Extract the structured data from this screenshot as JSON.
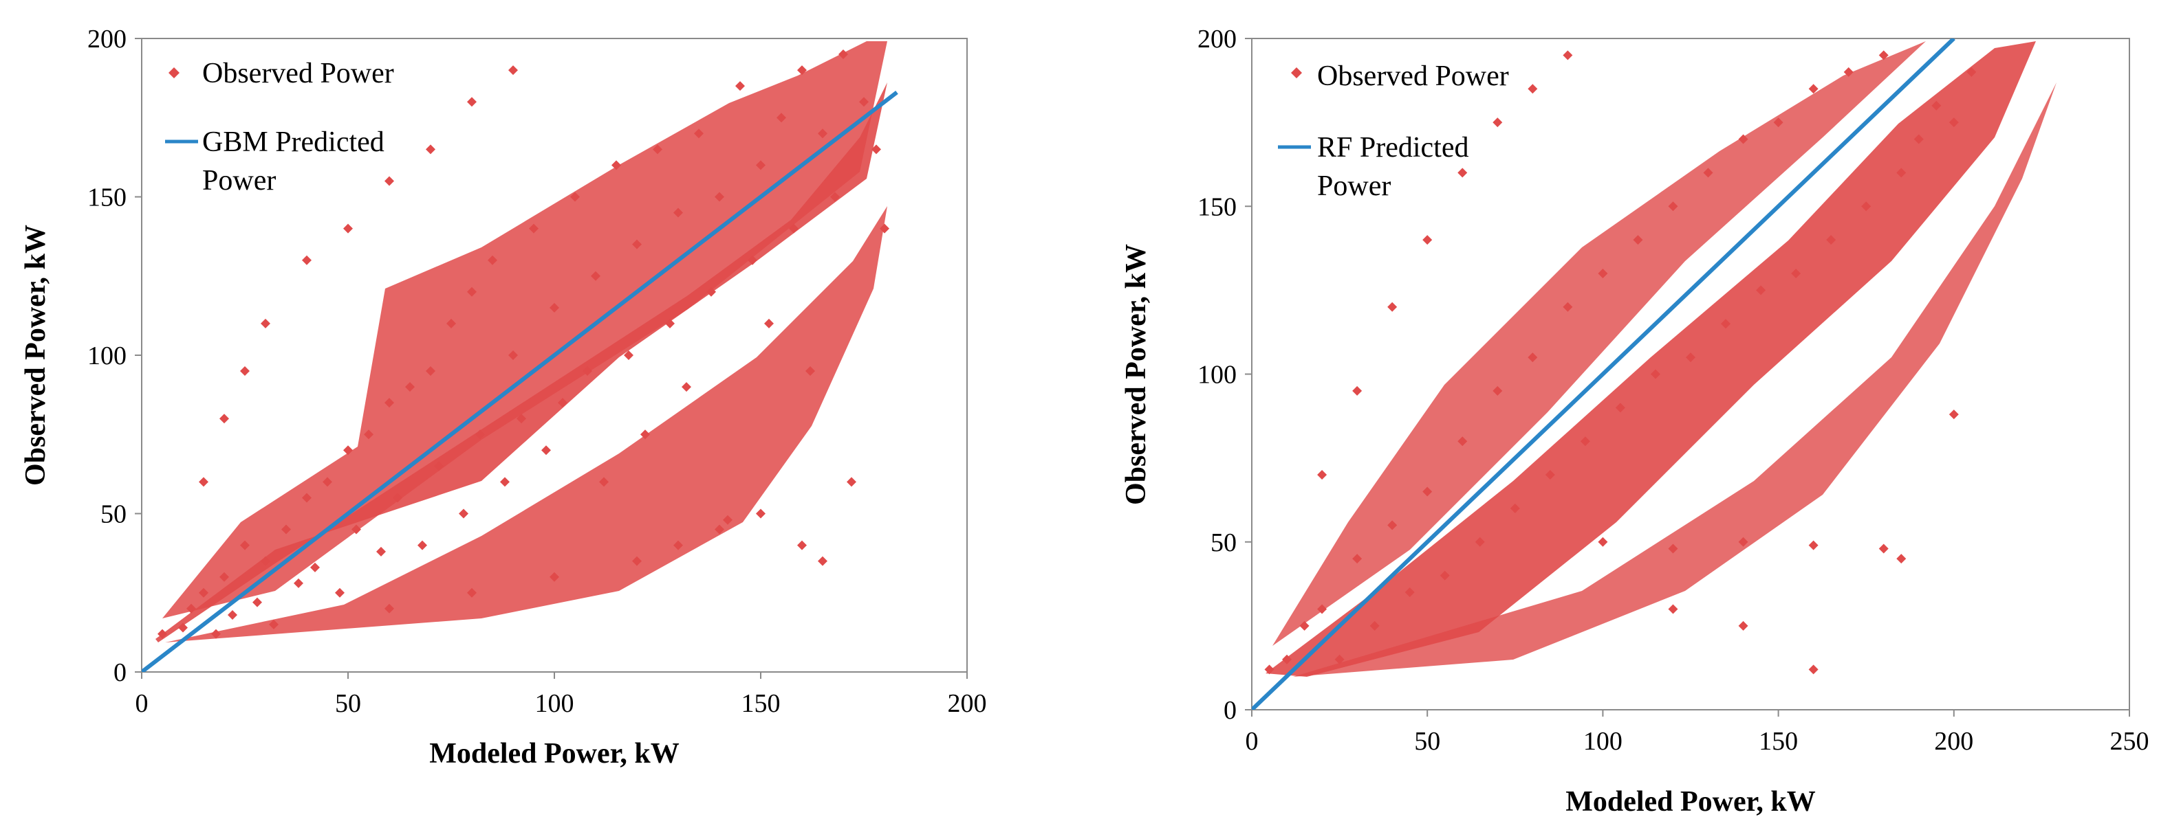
{
  "chart_data": [
    {
      "type": "scatter",
      "xlabel": "Modeled Power, kW",
      "ylabel": "Observed Power,  kW",
      "xlim": [
        0,
        200
      ],
      "ylim": [
        0,
        200
      ],
      "xticks": [
        0,
        50,
        100,
        150,
        200
      ],
      "yticks": [
        0,
        50,
        100,
        150,
        200
      ],
      "legend_position": "top-left",
      "series": [
        {
          "name": "Observed Power",
          "kind": "scatter",
          "color": "#e04a4a",
          "marker": "diamond",
          "points": [
            [
              5,
              12
            ],
            [
              10,
              14
            ],
            [
              12,
              20
            ],
            [
              15,
              25
            ],
            [
              18,
              12
            ],
            [
              20,
              30
            ],
            [
              22,
              18
            ],
            [
              25,
              40
            ],
            [
              28,
              22
            ],
            [
              30,
              35
            ],
            [
              32,
              15
            ],
            [
              35,
              45
            ],
            [
              38,
              28
            ],
            [
              40,
              55
            ],
            [
              42,
              33
            ],
            [
              45,
              60
            ],
            [
              48,
              25
            ],
            [
              50,
              70
            ],
            [
              52,
              45
            ],
            [
              55,
              75
            ],
            [
              58,
              38
            ],
            [
              60,
              85
            ],
            [
              62,
              55
            ],
            [
              65,
              90
            ],
            [
              68,
              40
            ],
            [
              70,
              95
            ],
            [
              72,
              65
            ],
            [
              75,
              110
            ],
            [
              78,
              50
            ],
            [
              80,
              120
            ],
            [
              82,
              75
            ],
            [
              85,
              130
            ],
            [
              88,
              60
            ],
            [
              90,
              100
            ],
            [
              92,
              80
            ],
            [
              95,
              140
            ],
            [
              98,
              70
            ],
            [
              100,
              115
            ],
            [
              102,
              85
            ],
            [
              105,
              150
            ],
            [
              108,
              95
            ],
            [
              110,
              125
            ],
            [
              112,
              60
            ],
            [
              115,
              160
            ],
            [
              118,
              100
            ],
            [
              120,
              135
            ],
            [
              122,
              75
            ],
            [
              125,
              165
            ],
            [
              128,
              110
            ],
            [
              130,
              145
            ],
            [
              132,
              90
            ],
            [
              135,
              170
            ],
            [
              138,
              120
            ],
            [
              140,
              150
            ],
            [
              142,
              48
            ],
            [
              145,
              185
            ],
            [
              148,
              130
            ],
            [
              150,
              160
            ],
            [
              152,
              110
            ],
            [
              155,
              175
            ],
            [
              158,
              140
            ],
            [
              160,
              190
            ],
            [
              162,
              95
            ],
            [
              165,
              170
            ],
            [
              168,
              150
            ],
            [
              170,
              195
            ],
            [
              172,
              60
            ],
            [
              175,
              180
            ],
            [
              178,
              165
            ],
            [
              180,
              140
            ],
            [
              15,
              60
            ],
            [
              20,
              80
            ],
            [
              25,
              95
            ],
            [
              30,
              110
            ],
            [
              40,
              130
            ],
            [
              50,
              140
            ],
            [
              60,
              155
            ],
            [
              70,
              165
            ],
            [
              80,
              180
            ],
            [
              90,
              190
            ],
            [
              60,
              20
            ],
            [
              80,
              25
            ],
            [
              100,
              30
            ],
            [
              120,
              35
            ],
            [
              130,
              40
            ],
            [
              140,
              45
            ],
            [
              150,
              50
            ],
            [
              160,
              40
            ],
            [
              165,
              35
            ]
          ]
        },
        {
          "name": "GBM Predicted Power",
          "kind": "line",
          "color": "#2a86c8",
          "points": [
            [
              0,
              0
            ],
            [
              183,
              183
            ]
          ]
        }
      ]
    },
    {
      "type": "scatter",
      "xlabel": "Modeled Power, kW",
      "ylabel": "Observed Power,  kW",
      "xlim": [
        0,
        250
      ],
      "ylim": [
        0,
        200
      ],
      "xticks": [
        0,
        50,
        100,
        150,
        200,
        250
      ],
      "yticks": [
        0,
        50,
        100,
        150,
        200
      ],
      "legend_position": "top-left",
      "series": [
        {
          "name": "Observed Power",
          "kind": "scatter",
          "color": "#e04a4a",
          "marker": "diamond",
          "points": [
            [
              5,
              12
            ],
            [
              10,
              15
            ],
            [
              15,
              25
            ],
            [
              20,
              30
            ],
            [
              25,
              15
            ],
            [
              30,
              45
            ],
            [
              35,
              25
            ],
            [
              40,
              55
            ],
            [
              45,
              35
            ],
            [
              50,
              65
            ],
            [
              55,
              40
            ],
            [
              60,
              80
            ],
            [
              65,
              50
            ],
            [
              70,
              95
            ],
            [
              75,
              60
            ],
            [
              80,
              105
            ],
            [
              85,
              70
            ],
            [
              90,
              120
            ],
            [
              95,
              80
            ],
            [
              100,
              130
            ],
            [
              105,
              90
            ],
            [
              110,
              140
            ],
            [
              115,
              100
            ],
            [
              120,
              150
            ],
            [
              125,
              105
            ],
            [
              130,
              160
            ],
            [
              135,
              115
            ],
            [
              140,
              170
            ],
            [
              145,
              125
            ],
            [
              150,
              175
            ],
            [
              155,
              130
            ],
            [
              160,
              185
            ],
            [
              165,
              140
            ],
            [
              170,
              190
            ],
            [
              175,
              150
            ],
            [
              180,
              195
            ],
            [
              185,
              160
            ],
            [
              190,
              170
            ],
            [
              195,
              180
            ],
            [
              200,
              175
            ],
            [
              205,
              190
            ],
            [
              20,
              70
            ],
            [
              30,
              95
            ],
            [
              40,
              120
            ],
            [
              50,
              140
            ],
            [
              60,
              160
            ],
            [
              70,
              175
            ],
            [
              80,
              185
            ],
            [
              90,
              195
            ],
            [
              100,
              50
            ],
            [
              120,
              48
            ],
            [
              140,
              50
            ],
            [
              160,
              49
            ],
            [
              180,
              48
            ],
            [
              120,
              30
            ],
            [
              140,
              25
            ],
            [
              160,
              12
            ],
            [
              185,
              45
            ],
            [
              200,
              88
            ]
          ]
        },
        {
          "name": "RF Predicted Power",
          "kind": "line",
          "color": "#2a86c8",
          "points": [
            [
              0,
              0
            ],
            [
              200,
              200
            ]
          ]
        }
      ]
    }
  ]
}
